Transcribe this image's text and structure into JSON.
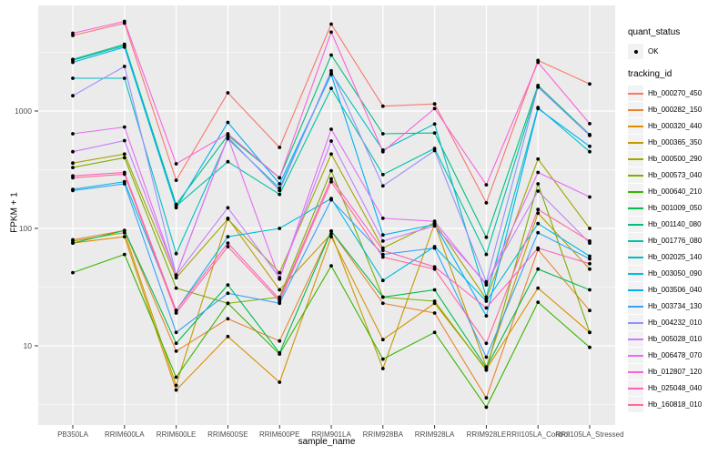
{
  "chart_data": {
    "type": "line",
    "title": "",
    "xlabel": "sample_name",
    "ylabel": "FPKM + 1",
    "y_scale": "log10",
    "y_ticks": [
      10,
      100,
      1000
    ],
    "y_minor_ticks": [
      3.16,
      31.6,
      316,
      3162
    ],
    "ylim": [
      2.1,
      7900
    ],
    "grid": true,
    "panel_bg": "#EBEBEB",
    "grid_color": "#FFFFFF",
    "point_color": "#000000",
    "categories": [
      "PB350LA",
      "RRIM600LA",
      "RRIM600LE",
      "RRIM600SE",
      "RRIM600PE",
      "RRIM901LA",
      "RRIM928BA",
      "RRIM928LA",
      "RRIM928LE",
      "RRII105LA_Control",
      "RRII105LA_Stressed"
    ],
    "series": [
      {
        "name": "Hb_000270_450",
        "color": "#F8766D",
        "values": [
          4400,
          5600,
          257,
          1430,
          490,
          5500,
          1100,
          1150,
          165,
          2700,
          1700
        ]
      },
      {
        "name": "Hb_000282_150",
        "color": "#EA8331",
        "values": [
          80,
          96,
          9,
          17,
          11,
          95,
          23,
          19,
          3.6,
          66,
          20
        ]
      },
      {
        "name": "Hb_000320_440",
        "color": "#D89000",
        "values": [
          75,
          85,
          4.2,
          12,
          4.9,
          85,
          11.3,
          23,
          6.3,
          31,
          13
        ]
      },
      {
        "name": "Hb_000365_350",
        "color": "#C09B00",
        "values": [
          78,
          92,
          4.6,
          122,
          30,
          90,
          6.4,
          110,
          6.6,
          135,
          45
        ]
      },
      {
        "name": "Hb_000500_290",
        "color": "#A3A500",
        "values": [
          360,
          430,
          38,
          120,
          42,
          430,
          68,
          112,
          25,
          390,
          100
        ]
      },
      {
        "name": "Hb_000573_040",
        "color": "#7CAE00",
        "values": [
          330,
          400,
          31,
          23,
          26,
          310,
          26,
          24,
          6.2,
          240,
          13
        ]
      },
      {
        "name": "Hb_000640_210",
        "color": "#39B600",
        "values": [
          42,
          60,
          5.4,
          23,
          8.5,
          48,
          7.7,
          13,
          3.0,
          23.5,
          9.7
        ]
      },
      {
        "name": "Hb_001009_050",
        "color": "#00BB4E",
        "values": [
          75,
          96,
          10.5,
          33,
          8.7,
          95,
          26,
          30,
          6.5,
          45,
          30
        ]
      },
      {
        "name": "Hb_001140_080",
        "color": "#00BF7D",
        "values": [
          2750,
          3700,
          160,
          620,
          270,
          3000,
          640,
          650,
          84,
          1650,
          630
        ]
      },
      {
        "name": "Hb_001776_080",
        "color": "#00C1A3",
        "values": [
          2700,
          3600,
          155,
          370,
          195,
          1560,
          287,
          480,
          60,
          1600,
          620
        ]
      },
      {
        "name": "Hb_002025_140",
        "color": "#00BFC4",
        "values": [
          1900,
          1900,
          61,
          580,
          220,
          2100,
          465,
          775,
          26,
          1070,
          450
        ]
      },
      {
        "name": "Hb_003050_090",
        "color": "#00BAE0",
        "values": [
          215,
          250,
          20,
          85,
          100,
          180,
          36,
          70,
          24,
          110,
          58
        ]
      },
      {
        "name": "Hb_003506_040",
        "color": "#00B0F6",
        "values": [
          2600,
          3500,
          150,
          800,
          240,
          2050,
          88,
          108,
          18,
          1050,
          500
        ]
      },
      {
        "name": "Hb_003734_130",
        "color": "#35A2FF",
        "values": [
          210,
          240,
          13,
          28,
          23,
          175,
          60,
          68,
          8,
          92,
          55
        ]
      },
      {
        "name": "Hb_004232_010",
        "color": "#9590FF",
        "values": [
          1350,
          2400,
          40,
          600,
          210,
          2200,
          230,
          460,
          35,
          1600,
          620
        ]
      },
      {
        "name": "Hb_005028_010",
        "color": "#C77CFF",
        "values": [
          450,
          560,
          40,
          150,
          38,
          555,
          78,
          105,
          34,
          208,
          75
        ]
      },
      {
        "name": "Hb_006478_070",
        "color": "#E76BF3",
        "values": [
          640,
          730,
          40,
          600,
          37,
          700,
          122,
          115,
          33,
          300,
          185
        ]
      },
      {
        "name": "Hb_012807_120",
        "color": "#FA62DB",
        "values": [
          4600,
          5800,
          355,
          640,
          270,
          4700,
          450,
          1050,
          235,
          2600,
          780
        ]
      },
      {
        "name": "Hb_025048_040",
        "color": "#FF62BC",
        "values": [
          280,
          300,
          20,
          75,
          25,
          265,
          65,
          47,
          21,
          68,
          50
        ]
      },
      {
        "name": "Hb_160818_010",
        "color": "#FF6A98",
        "values": [
          270,
          290,
          19,
          70,
          24,
          250,
          57,
          45,
          10.5,
          145,
          78
        ]
      }
    ],
    "legend": {
      "position": "right",
      "quant_status_title": "quant_status",
      "quant_status_items": [
        "OK"
      ],
      "tracking_title": "tracking_id"
    }
  }
}
